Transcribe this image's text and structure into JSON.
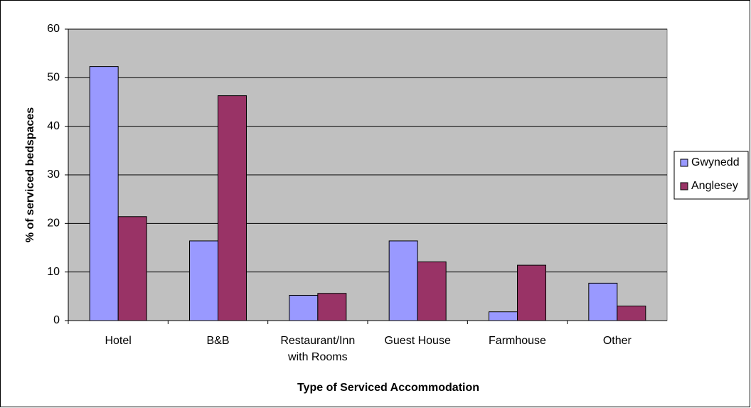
{
  "chart_data": {
    "type": "bar",
    "x_label": "Type of Serviced Accommodation",
    "y_label": "% of serviced bedspaces",
    "categories": [
      "Hotel",
      "B&B",
      "Restaurant/Inn with Rooms",
      "Guest House",
      "Farmhouse",
      "Other"
    ],
    "series": [
      {
        "name": "Gwynedd",
        "color": "#9999ff",
        "values": [
          52.3,
          16.4,
          5.2,
          16.4,
          1.8,
          7.7
        ]
      },
      {
        "name": "Anglesey",
        "color": "#993366",
        "values": [
          21.4,
          46.3,
          5.6,
          12.1,
          11.4,
          3.0
        ]
      }
    ],
    "ylim": [
      0,
      60
    ],
    "yticks": [
      0,
      10,
      20,
      30,
      40,
      50,
      60
    ],
    "grid": true,
    "legend": "right"
  }
}
